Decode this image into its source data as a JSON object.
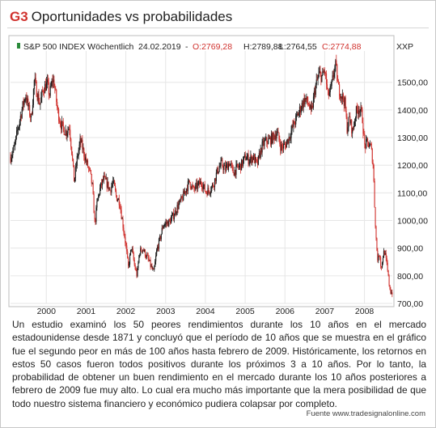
{
  "figure": {
    "number": "G3",
    "title": "Oportunidades vs probabilidades"
  },
  "header": {
    "instrument": "S&P 500 INDEX Wöchentlich",
    "date": "24.02.2019",
    "sep": "-",
    "open": "O:2769,28",
    "high": "H:2789,88",
    "low": "L:2764,55",
    "close": "C:2774,88",
    "currency": "XXP"
  },
  "colors": {
    "up": "#1a1a1a",
    "down": "#d0312d",
    "accent": "#d0312d",
    "grid": "#e6e6e6"
  },
  "chart_data": {
    "type": "line",
    "style": "weekly candlesticks",
    "title": "",
    "xlabel": "",
    "ylabel": "",
    "x_start": 1999.6,
    "x_end": 2009.2,
    "x_ticks": [
      "2000",
      "2001",
      "2002",
      "2003",
      "2004",
      "2005",
      "2006",
      "2007",
      "2008"
    ],
    "y_ticks": [
      "1500,00",
      "1400,00",
      "1300,00",
      "1200,00",
      "1100,00",
      "1000,00",
      "900,00",
      "800,00",
      "700,00"
    ],
    "ylim": [
      700,
      1590
    ],
    "y_axis_side": "right",
    "grid": true,
    "series": [
      {
        "values": [
          [
            1999.6,
            1230
          ],
          [
            1999.7,
            1265
          ],
          [
            1999.78,
            1330
          ],
          [
            1999.9,
            1410
          ],
          [
            1999.98,
            1455
          ],
          [
            2000.06,
            1400
          ],
          [
            2000.12,
            1370
          ],
          [
            2000.2,
            1510
          ],
          [
            2000.26,
            1465
          ],
          [
            2000.34,
            1420
          ],
          [
            2000.42,
            1475
          ],
          [
            2000.52,
            1495
          ],
          [
            2000.58,
            1455
          ],
          [
            2000.66,
            1510
          ],
          [
            2000.7,
            1495
          ],
          [
            2000.78,
            1400
          ],
          [
            2000.86,
            1350
          ],
          [
            2000.94,
            1330
          ],
          [
            2001.0,
            1320
          ],
          [
            2001.08,
            1340
          ],
          [
            2001.14,
            1250
          ],
          [
            2001.2,
            1140
          ],
          [
            2001.28,
            1230
          ],
          [
            2001.36,
            1290
          ],
          [
            2001.44,
            1245
          ],
          [
            2001.52,
            1205
          ],
          [
            2001.6,
            1170
          ],
          [
            2001.66,
            1120
          ],
          [
            2001.72,
            985
          ],
          [
            2001.78,
            1070
          ],
          [
            2001.86,
            1120
          ],
          [
            2001.94,
            1150
          ],
          [
            2002.02,
            1135
          ],
          [
            2002.1,
            1110
          ],
          [
            2002.18,
            1140
          ],
          [
            2002.26,
            1085
          ],
          [
            2002.34,
            1070
          ],
          [
            2002.42,
            990
          ],
          [
            2002.5,
            910
          ],
          [
            2002.56,
            830
          ],
          [
            2002.64,
            905
          ],
          [
            2002.72,
            835
          ],
          [
            2002.78,
            800
          ],
          [
            2002.84,
            885
          ],
          [
            2002.92,
            900
          ],
          [
            2002.98,
            880
          ],
          [
            2003.06,
            860
          ],
          [
            2003.14,
            830
          ],
          [
            2003.2,
            810
          ],
          [
            2003.28,
            895
          ],
          [
            2003.36,
            935
          ],
          [
            2003.44,
            985
          ],
          [
            2003.52,
            990
          ],
          [
            2003.6,
            995
          ],
          [
            2003.7,
            1020
          ],
          [
            2003.8,
            1050
          ],
          [
            2003.92,
            1080
          ],
          [
            2004.0,
            1110
          ],
          [
            2004.1,
            1140
          ],
          [
            2004.2,
            1110
          ],
          [
            2004.3,
            1125
          ],
          [
            2004.4,
            1140
          ],
          [
            2004.5,
            1105
          ],
          [
            2004.6,
            1110
          ],
          [
            2004.7,
            1130
          ],
          [
            2004.8,
            1180
          ],
          [
            2004.9,
            1205
          ],
          [
            2005.0,
            1185
          ],
          [
            2005.1,
            1210
          ],
          [
            2005.2,
            1175
          ],
          [
            2005.3,
            1190
          ],
          [
            2005.4,
            1200
          ],
          [
            2005.5,
            1230
          ],
          [
            2005.6,
            1220
          ],
          [
            2005.7,
            1230
          ],
          [
            2005.8,
            1200
          ],
          [
            2005.9,
            1260
          ],
          [
            2006.0,
            1285
          ],
          [
            2006.1,
            1290
          ],
          [
            2006.2,
            1300
          ],
          [
            2006.3,
            1320
          ],
          [
            2006.4,
            1265
          ],
          [
            2006.5,
            1270
          ],
          [
            2006.6,
            1300
          ],
          [
            2006.7,
            1340
          ],
          [
            2006.8,
            1375
          ],
          [
            2006.9,
            1410
          ],
          [
            2007.0,
            1440
          ],
          [
            2007.1,
            1420
          ],
          [
            2007.16,
            1385
          ],
          [
            2007.26,
            1480
          ],
          [
            2007.36,
            1530
          ],
          [
            2007.44,
            1520
          ],
          [
            2007.5,
            1545
          ],
          [
            2007.58,
            1450
          ],
          [
            2007.66,
            1475
          ],
          [
            2007.74,
            1550
          ],
          [
            2007.78,
            1560
          ],
          [
            2007.84,
            1480
          ],
          [
            2007.9,
            1460
          ],
          [
            2008.0,
            1430
          ],
          [
            2008.06,
            1335
          ],
          [
            2008.12,
            1370
          ],
          [
            2008.2,
            1320
          ],
          [
            2008.28,
            1390
          ],
          [
            2008.36,
            1410
          ],
          [
            2008.44,
            1380
          ],
          [
            2008.5,
            1270
          ],
          [
            2008.58,
            1280
          ],
          [
            2008.66,
            1265
          ],
          [
            2008.72,
            1200
          ],
          [
            2008.76,
            1030
          ],
          [
            2008.8,
            910
          ],
          [
            2008.84,
            850
          ],
          [
            2008.88,
            890
          ],
          [
            2008.92,
            820
          ],
          [
            2008.96,
            870
          ],
          [
            2009.0,
            890
          ],
          [
            2009.06,
            840
          ],
          [
            2009.12,
            770
          ],
          [
            2009.16,
            740
          ]
        ]
      }
    ]
  },
  "body_text": "Un estudio examinó los 50 peores rendimientos durante los 10 años en el mercado estadounidense desde 1871 y concluyó que el período de 10 años que se muestra en el gráfico fue el segundo peor en más de 100 años hasta febrero de 2009.  Históricamente, los retornos en estos 50 casos fueron todos positivos durante los próximos 3 a 10 años. Por lo tanto, la probabilidad de obtener un buen rendimiento en el mercado durante los 10 años posteriores a febrero de 2009 fue muy alto. Lo cual era mucho más importante que la mera posibilidad de que todo nuestro sistema financiero y económico pudiera colapsar por completo.",
  "source": "Fuente www.tradesignalonline.com"
}
